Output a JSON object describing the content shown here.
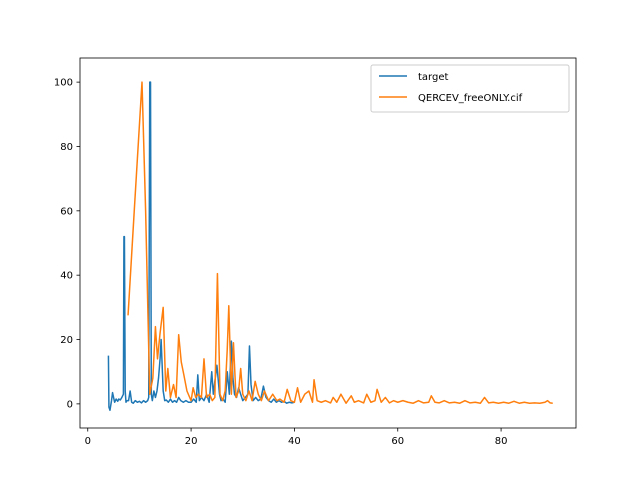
{
  "chart_data": {
    "type": "line",
    "title": "",
    "xlabel": "",
    "ylabel": "",
    "xlim": [
      -1.5,
      94.5
    ],
    "ylim": [
      -7.5,
      107.5
    ],
    "xticks": [
      0,
      20,
      40,
      60,
      80
    ],
    "yticks": [
      0,
      20,
      40,
      60,
      80,
      100
    ],
    "legend": "top-right",
    "series": [
      {
        "name": "target",
        "color": "#1f77b4",
        "x": [
          4.0,
          4.1,
          4.3,
          4.6,
          4.8,
          5.0,
          5.2,
          5.5,
          5.8,
          6.0,
          6.3,
          6.6,
          6.9,
          7.0,
          7.1,
          7.25,
          7.4,
          7.6,
          7.9,
          8.2,
          8.5,
          8.8,
          9.2,
          9.6,
          10.0,
          10.4,
          10.8,
          11.2,
          11.6,
          11.8,
          12.0,
          12.15,
          12.3,
          12.5,
          12.8,
          13.1,
          13.4,
          13.7,
          14.0,
          14.2,
          14.4,
          14.6,
          14.9,
          15.2,
          15.6,
          16.0,
          16.4,
          16.8,
          17.2,
          17.6,
          18.0,
          18.5,
          19.0,
          19.5,
          20.0,
          20.5,
          21.0,
          21.3,
          21.6,
          22.0,
          22.5,
          23.0,
          23.5,
          24.0,
          24.3,
          24.6,
          25.0,
          25.5,
          25.8,
          26.2,
          26.6,
          27.0,
          27.4,
          27.8,
          28.1,
          28.4,
          28.8,
          29.2,
          29.6,
          30.0,
          30.5,
          31.0,
          31.3,
          31.6,
          32.0,
          32.5,
          33.0,
          33.5,
          34.0,
          34.5,
          35.0,
          35.5,
          36.0,
          36.5,
          37.0,
          37.5,
          38.0,
          38.5,
          39.0,
          39.5,
          40.0
        ],
        "y": [
          15,
          -1,
          -2,
          1,
          3.5,
          2,
          0.5,
          1.5,
          0.8,
          1.5,
          1.2,
          2,
          3,
          52,
          52,
          4,
          0.5,
          1,
          1,
          4,
          0.5,
          0.2,
          1,
          0.5,
          0.8,
          0.3,
          1,
          0.5,
          1,
          2,
          100,
          100,
          3,
          1,
          4,
          2,
          4,
          8,
          14,
          20,
          12,
          4,
          1,
          1.2,
          0.5,
          1.5,
          0.5,
          1,
          0.5,
          2,
          1,
          0.5,
          1,
          0.5,
          0.5,
          1.5,
          0.5,
          9,
          1,
          2,
          1,
          3,
          0.5,
          10,
          3,
          7,
          12,
          3,
          1,
          1.5,
          0.5,
          10,
          3,
          19.5,
          8,
          3,
          2,
          5,
          3,
          1,
          2,
          3,
          18,
          6,
          1,
          2,
          1,
          1.5,
          5.5,
          2,
          1,
          0.5,
          1.5,
          0.5,
          1,
          0.5,
          0.8,
          0.2,
          0.5,
          0.3,
          0.5
        ]
      },
      {
        "name": "QERCEV_freeONLY.cif",
        "color": "#ff7f0e",
        "x": [
          7.8,
          9.0,
          10.5,
          11.2,
          12.0,
          12.6,
          13.1,
          13.5,
          14.0,
          14.6,
          15.1,
          15.5,
          16.0,
          16.6,
          17.1,
          17.6,
          18.1,
          18.6,
          19.2,
          20.0,
          20.4,
          20.9,
          21.4,
          22.0,
          22.5,
          23.0,
          23.6,
          24.1,
          24.6,
          25.1,
          25.6,
          26.1,
          26.6,
          27.0,
          27.3,
          27.8,
          28.2,
          28.7,
          29.2,
          29.6,
          30.0,
          30.6,
          31.2,
          31.8,
          32.4,
          33.0,
          33.6,
          34.2,
          35.0,
          35.8,
          36.6,
          37.2,
          38.0,
          38.6,
          39.3,
          40.0,
          40.6,
          41.2,
          42.0,
          42.8,
          43.5,
          43.8,
          44.4,
          45.2,
          46.0,
          47.0,
          47.5,
          48.2,
          49.0,
          50.0,
          51.0,
          51.6,
          52.4,
          53.4,
          54.0,
          54.8,
          55.6,
          56.0,
          56.8,
          57.6,
          58.4,
          59.2,
          60.0,
          61.0,
          62.0,
          63.0,
          64.0,
          65.0,
          66.0,
          66.5,
          67.2,
          68.0,
          69.0,
          70.0,
          71.0,
          72.0,
          73.0,
          74.0,
          75.0,
          76.0,
          76.8,
          77.6,
          78.5,
          79.5,
          80.5,
          81.5,
          82.5,
          83.5,
          84.5,
          85.5,
          86.5,
          87.5,
          88.5,
          89.0,
          89.5,
          90.0
        ],
        "y": [
          27.5,
          60,
          100,
          60,
          3,
          8,
          24,
          14,
          22,
          30,
          4,
          11,
          2,
          6,
          2,
          21.5,
          13,
          9,
          4,
          1,
          5,
          2,
          3,
          2,
          14,
          2,
          3,
          1,
          2,
          40.5,
          3,
          1,
          4,
          17,
          30.5,
          3,
          19,
          2,
          4,
          11,
          3,
          1,
          4,
          1,
          7,
          3,
          1,
          4,
          1,
          3,
          1,
          1.5,
          0.5,
          4.5,
          1,
          0.5,
          5,
          0.5,
          3,
          4,
          0.5,
          7.5,
          1,
          0.5,
          1,
          0.3,
          2,
          0.5,
          3,
          0.2,
          2.5,
          0.5,
          1,
          0.3,
          3,
          0.5,
          1,
          4.5,
          0.5,
          2,
          0.3,
          1,
          0.5,
          1,
          0.5,
          0.2,
          1,
          0.3,
          0.5,
          2.5,
          0.5,
          0.3,
          1,
          0.3,
          0.5,
          0.2,
          1,
          0.3,
          0.5,
          0.2,
          2,
          0.3,
          0.5,
          0.2,
          0.5,
          0.2,
          0.8,
          0.2,
          0.5,
          0.2,
          0.3,
          0.2,
          0.5,
          1,
          0.3,
          0.2
        ]
      }
    ]
  }
}
